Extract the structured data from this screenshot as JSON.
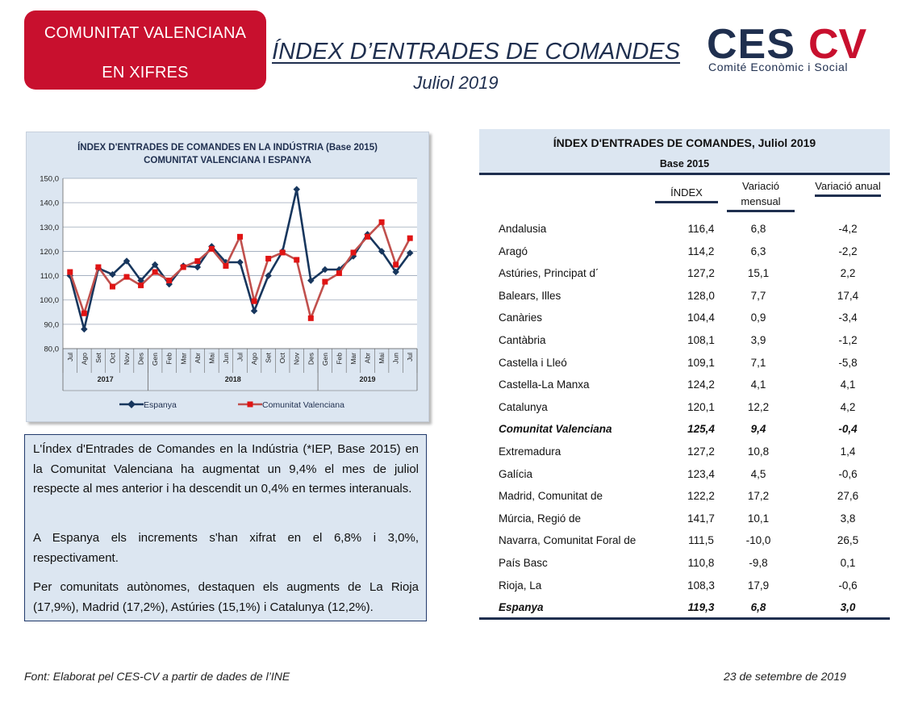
{
  "badge": {
    "line1": "COMUNITAT VALENCIANA",
    "line2": "EN XIFRES"
  },
  "header": {
    "title": "ÍNDEX D’ENTRADES DE COMANDES",
    "subtitle": "Juliol 2019"
  },
  "logo": {
    "mark_left": "CES",
    "mark_right": "CV",
    "tagline": "Comité Econòmic i Social"
  },
  "colors": {
    "brand_red": "#c8102e",
    "navy": "#1f2f4f",
    "panel": "#dce6f1",
    "series_espanya": "#17365d",
    "series_cv": "#c0504d"
  },
  "chart_data": {
    "type": "line",
    "title": [
      "ÍNDEX D'ENTRADES DE COMANDES  EN LA INDÚSTRIA (Base 2015)",
      "COMUNITAT  VALENCIANA  I ESPANYA"
    ],
    "categories": [
      "Jul",
      "Ago",
      "Set",
      "Oct",
      "Nov",
      "Des",
      "Gen",
      "Feb",
      "Mar",
      "Abr",
      "Mai",
      "Jun",
      "Jul",
      "Ago",
      "Set",
      "Oct",
      "Nov",
      "Des",
      "Gen",
      "Feb",
      "Mar",
      "Abr",
      "Mai",
      "Jun",
      "Jul"
    ],
    "year_groups": [
      {
        "label": "2017",
        "count": 6
      },
      {
        "label": "2018",
        "count": 12
      },
      {
        "label": "2019",
        "count": 7
      }
    ],
    "yticks": [
      "150,0",
      "140,0",
      "130,0",
      "120,0",
      "110,0",
      "100,0",
      "90,0",
      "80,0"
    ],
    "ylim": [
      80,
      150
    ],
    "grid": true,
    "legend_position": "bottom",
    "series": [
      {
        "name": "Espanya",
        "values": [
          110.0,
          88.0,
          113.0,
          110.5,
          116.0,
          108.0,
          114.5,
          106.5,
          114.0,
          113.5,
          122.0,
          115.5,
          115.5,
          95.5,
          110.0,
          120.0,
          145.5,
          108.0,
          112.5,
          112.5,
          118.0,
          127.0,
          120.0,
          111.5,
          119.3
        ]
      },
      {
        "name": "Comunitat Valenciana",
        "values": [
          111.5,
          94.5,
          113.5,
          105.5,
          109.5,
          106.0,
          111.5,
          108.0,
          113.5,
          116.0,
          121.0,
          114.0,
          126.0,
          99.5,
          117.0,
          119.5,
          116.5,
          92.5,
          107.5,
          111.0,
          119.5,
          126.0,
          132.0,
          114.5,
          125.4
        ]
      }
    ]
  },
  "summary": {
    "p1": "L'Índex d'Entrades de Comandes en la Indústria (*IEP, Base 2015) en la Comunitat Valenciana ha augmentat un 9,4% el mes de juliol respecte al mes anterior i ha descendit un 0,4% en termes interanuals.",
    "p2": "A Espanya els increments s'han xifrat en el 6,8% i 3,0%, respectivament.",
    "p3": "Per comunitats autònomes, destaquen els augments de La Rioja (17,9%), Madrid (17,2%), Astúries (15,1%) i Catalunya (12,2%)."
  },
  "table": {
    "title": "ÍNDEX D'ENTRADES DE COMANDES, Juliol 2019",
    "subtitle": "Base 2015",
    "col_index": "ÍNDEX",
    "col_mensual": "Variació mensual",
    "col_anual": "Variació anual",
    "rows": [
      {
        "region": "Andalusia",
        "index": "116,4",
        "mensual": "6,8",
        "anual": "-4,2",
        "bold": false
      },
      {
        "region": "Aragó",
        "index": "114,2",
        "mensual": "6,3",
        "anual": "-2,2",
        "bold": false
      },
      {
        "region": "Astúries, Principat d´",
        "index": "127,2",
        "mensual": "15,1",
        "anual": "2,2",
        "bold": false
      },
      {
        "region": "Balears, Illes",
        "index": "128,0",
        "mensual": "7,7",
        "anual": "17,4",
        "bold": false
      },
      {
        "region": "Canàries",
        "index": "104,4",
        "mensual": "0,9",
        "anual": "-3,4",
        "bold": false
      },
      {
        "region": "Cantàbria",
        "index": "108,1",
        "mensual": "3,9",
        "anual": "-1,2",
        "bold": false
      },
      {
        "region": "Castella i Lleó",
        "index": "109,1",
        "mensual": "7,1",
        "anual": "-5,8",
        "bold": false
      },
      {
        "region": "Castella-La Manxa",
        "index": "124,2",
        "mensual": "4,1",
        "anual": "4,1",
        "bold": false
      },
      {
        "region": "Catalunya",
        "index": "120,1",
        "mensual": "12,2",
        "anual": "4,2",
        "bold": false
      },
      {
        "region": "Comunitat Valenciana",
        "index": "125,4",
        "mensual": "9,4",
        "anual": "-0,4",
        "bold": true
      },
      {
        "region": "Extremadura",
        "index": "127,2",
        "mensual": "10,8",
        "anual": "1,4",
        "bold": false
      },
      {
        "region": "Galícia",
        "index": "123,4",
        "mensual": "4,5",
        "anual": "-0,6",
        "bold": false
      },
      {
        "region": "Madrid, Comunitat de",
        "index": "122,2",
        "mensual": "17,2",
        "anual": "27,6",
        "bold": false
      },
      {
        "region": "Múrcia, Regió de",
        "index": "141,7",
        "mensual": "10,1",
        "anual": "3,8",
        "bold": false
      },
      {
        "region": "Navarra, Comunitat Foral de",
        "index": "111,5",
        "mensual": "-10,0",
        "anual": "26,5",
        "bold": false
      },
      {
        "region": "País Basc",
        "index": "110,8",
        "mensual": "-9,8",
        "anual": "0,1",
        "bold": false
      },
      {
        "region": "Rioja, La",
        "index": "108,3",
        "mensual": "17,9",
        "anual": "-0,6",
        "bold": false
      },
      {
        "region": "Espanya",
        "index": "119,3",
        "mensual": "6,8",
        "anual": "3,0",
        "bold": true
      }
    ]
  },
  "footer": {
    "source": "Font: Elaborat pel CES-CV a partir de dades de l’INE",
    "date": "23 de setembre de 2019"
  }
}
